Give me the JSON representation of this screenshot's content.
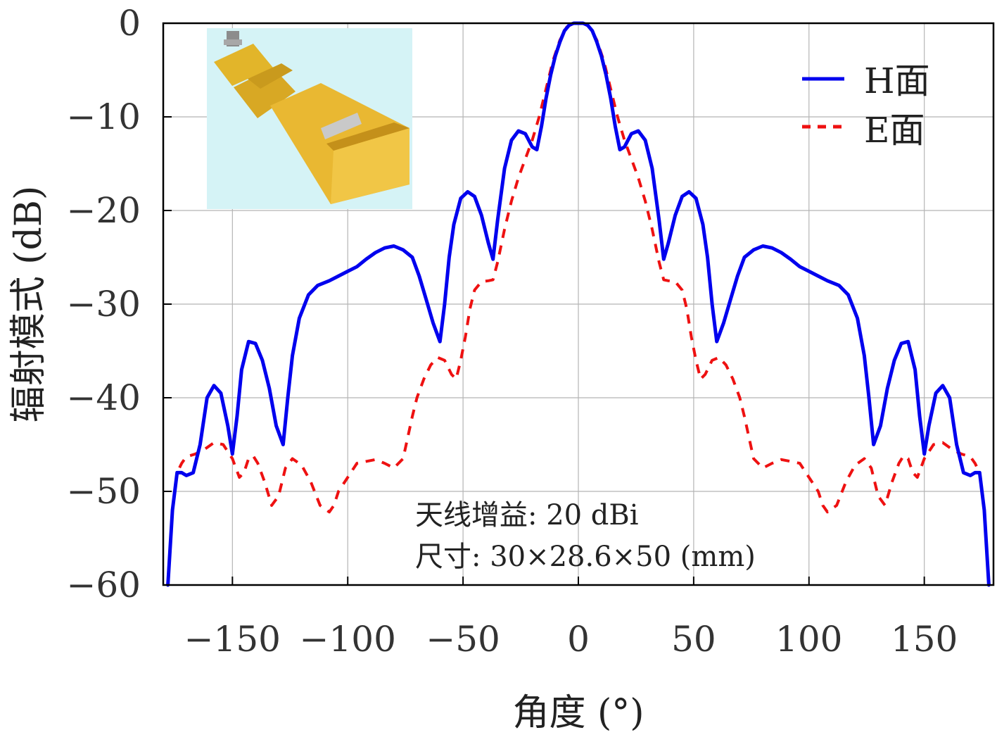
{
  "chart_data": {
    "type": "line",
    "xlabel": "角度 (°)",
    "ylabel": "辐射模式 (dB)",
    "xlim": [
      -180,
      180
    ],
    "ylim": [
      -60,
      0
    ],
    "x_ticks": [
      -150,
      -100,
      -50,
      0,
      50,
      100,
      150
    ],
    "x_tick_labels": [
      "−150",
      "−100",
      "−50",
      "0",
      "50",
      "100",
      "150"
    ],
    "y_ticks": [
      0,
      -10,
      -20,
      -30,
      -40,
      -50,
      -60
    ],
    "y_tick_labels": [
      "0",
      "−10",
      "−20",
      "−30",
      "−40",
      "−50",
      "−60"
    ],
    "grid": true,
    "legend_position": "top-right",
    "inset_image": "horn-antenna-photo",
    "annotations": [
      "天线增益: 20 dBi",
      "尺寸: 30×28.6×50 (mm)"
    ],
    "series": [
      {
        "name": "H面",
        "color": "#0000ee",
        "style": "solid",
        "x": [
          -178,
          -176,
          -174,
          -172,
          -170,
          -167,
          -164,
          -161,
          -158,
          -155,
          -152,
          -150,
          -148,
          -146,
          -143,
          -140,
          -137,
          -134,
          -131,
          -128,
          -126,
          -124,
          -121,
          -117,
          -113,
          -108,
          -104,
          -100,
          -96,
          -92,
          -88,
          -84,
          -80,
          -76,
          -72,
          -69,
          -66,
          -63,
          -60,
          -58,
          -56,
          -54,
          -51,
          -48,
          -45,
          -42,
          -39,
          -37,
          -35,
          -32,
          -29,
          -26,
          -23,
          -20,
          -18,
          -16,
          -14,
          -12,
          -10,
          -8,
          -6,
          -4,
          -2,
          0,
          2,
          4,
          6,
          8,
          10,
          12,
          14,
          16,
          18,
          20,
          23,
          26,
          29,
          32,
          35,
          37,
          39,
          42,
          45,
          48,
          51,
          54,
          56,
          58,
          60,
          63,
          66,
          69,
          72,
          76,
          80,
          84,
          88,
          92,
          96,
          100,
          104,
          108,
          113,
          117,
          121,
          124,
          126,
          128,
          131,
          134,
          137,
          140,
          143,
          146,
          148,
          150,
          152,
          155,
          158,
          161,
          164,
          167,
          170,
          172,
          174,
          176,
          178
        ],
        "values": [
          -60,
          -52,
          -48,
          -48,
          -48.3,
          -48,
          -45,
          -40,
          -38.7,
          -39.5,
          -43,
          -46,
          -42,
          -37,
          -34,
          -34.2,
          -36,
          -39,
          -43,
          -45,
          -40,
          -35.5,
          -31.5,
          -29,
          -28,
          -27.5,
          -27,
          -26.5,
          -26,
          -25.2,
          -24.5,
          -24,
          -23.8,
          -24.2,
          -25,
          -27,
          -29.5,
          -32,
          -34,
          -30,
          -25,
          -21.5,
          -18.7,
          -18,
          -18.5,
          -20.5,
          -23.5,
          -25.2,
          -21,
          -15.5,
          -12.5,
          -11.5,
          -11.8,
          -13.2,
          -13.5,
          -11,
          -8,
          -5.5,
          -3.5,
          -2,
          -0.8,
          -0.2,
          0,
          0,
          0,
          -0.2,
          -0.8,
          -2,
          -3.5,
          -5.5,
          -8,
          -11,
          -13.5,
          -13.2,
          -11.8,
          -11.5,
          -12.5,
          -15.5,
          -21,
          -25.2,
          -23.5,
          -20.5,
          -18.5,
          -18,
          -18.7,
          -21.5,
          -25,
          -30,
          -34,
          -32,
          -29.5,
          -27,
          -25,
          -24.2,
          -23.8,
          -24,
          -24.5,
          -25.2,
          -26,
          -26.5,
          -27,
          -27.5,
          -28,
          -29,
          -31.5,
          -35.5,
          -40,
          -45,
          -43,
          -39,
          -36,
          -34.2,
          -34,
          -37,
          -42,
          -46,
          -43,
          -39.5,
          -38.7,
          -40,
          -45,
          -48,
          -48.3,
          -48,
          -48,
          -52,
          -60
        ]
      },
      {
        "name": "E面",
        "color": "#ee1111",
        "style": "dashed",
        "x": [
          -178,
          -176,
          -174,
          -172,
          -170,
          -166,
          -162,
          -158,
          -154,
          -150,
          -147,
          -145,
          -143,
          -141,
          -139,
          -136,
          -133,
          -130,
          -127,
          -124,
          -120,
          -116,
          -112,
          -108,
          -106,
          -104,
          -100,
          -96,
          -92,
          -88,
          -84,
          -80,
          -76,
          -72,
          -70,
          -67,
          -64,
          -61,
          -58,
          -55,
          -53,
          -51,
          -49,
          -47,
          -45,
          -42,
          -39,
          -37,
          -35,
          -32,
          -29,
          -26,
          -23,
          -20,
          -17,
          -14,
          -11,
          -8,
          -5,
          -2,
          0,
          2,
          5,
          8,
          11,
          14,
          17,
          20,
          23,
          26,
          29,
          32,
          35,
          37,
          39,
          42,
          45,
          47,
          49,
          51,
          53,
          55,
          58,
          61,
          64,
          67,
          70,
          72,
          76,
          80,
          84,
          88,
          92,
          96,
          100,
          104,
          106,
          108,
          112,
          116,
          120,
          124,
          127,
          130,
          133,
          136,
          139,
          141,
          143,
          145,
          147,
          150,
          154,
          158,
          162,
          166,
          170,
          172,
          174,
          176,
          178
        ],
        "values": [
          -60,
          -52,
          -48,
          -47,
          -46.3,
          -46,
          -45.5,
          -44.8,
          -45,
          -46.5,
          -48.5,
          -48,
          -46.5,
          -46.2,
          -47,
          -49,
          -51.5,
          -50.5,
          -47.5,
          -46.5,
          -47.2,
          -49,
          -51.5,
          -52.2,
          -51.5,
          -50,
          -48.5,
          -47,
          -46.8,
          -46.6,
          -47,
          -47.5,
          -46.5,
          -42,
          -40,
          -38,
          -36.5,
          -35.7,
          -36,
          -37.5,
          -38,
          -36,
          -33.5,
          -30.5,
          -28.5,
          -27.6,
          -27.5,
          -27.4,
          -25.5,
          -22,
          -19,
          -16.5,
          -14.5,
          -12.5,
          -10,
          -7,
          -4,
          -1.8,
          -0.4,
          0,
          0,
          0,
          -0.4,
          -1.8,
          -4,
          -7,
          -10,
          -12.5,
          -14.5,
          -16.5,
          -19,
          -22,
          -25.5,
          -27.4,
          -27.5,
          -27.6,
          -28.5,
          -30.5,
          -33.5,
          -36,
          -38,
          -37.5,
          -36,
          -35.7,
          -36.5,
          -38,
          -40,
          -42,
          -46.5,
          -47.5,
          -47,
          -46.6,
          -46.8,
          -47,
          -48.5,
          -50,
          -51.5,
          -52.2,
          -51.5,
          -49,
          -47.2,
          -46.5,
          -47.5,
          -50.5,
          -51.5,
          -49,
          -47,
          -46.2,
          -46.5,
          -48,
          -48.5,
          -46.5,
          -45,
          -44.8,
          -45.5,
          -46,
          -46.3,
          -47,
          -48,
          -52,
          -60
        ]
      }
    ]
  }
}
